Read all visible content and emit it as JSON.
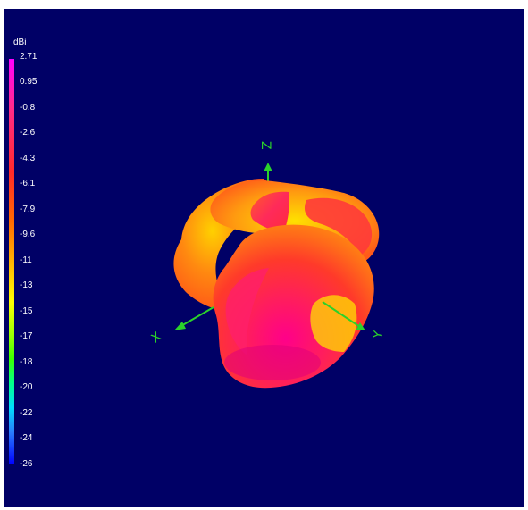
{
  "colorbar": {
    "unit": "dBi",
    "ticks": [
      "2.71",
      "0.95",
      "-0.8",
      "-2.6",
      "-4.3",
      "-6.1",
      "-7.9",
      "-9.6",
      "-11",
      "-13",
      "-15",
      "-17",
      "-18",
      "-20",
      "-22",
      "-24",
      "-26"
    ],
    "colors": {
      "max": "#ff00ff",
      "mid": "#ffff00",
      "min": "#0000ff"
    }
  },
  "axes": {
    "x": "X",
    "y": "Y",
    "z": "Z",
    "color": "#2bd12b"
  },
  "background": "#000066"
}
